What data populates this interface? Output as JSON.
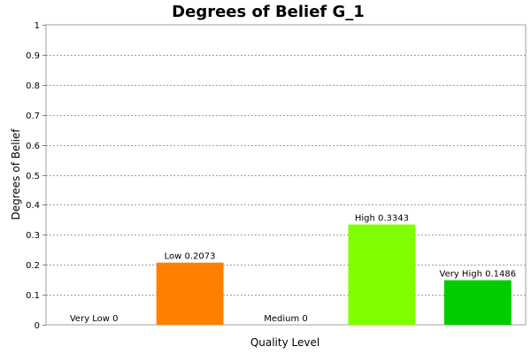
{
  "chart_data": {
    "type": "bar",
    "title": "Degrees of Belief G_1",
    "xlabel": "Quality Level",
    "ylabel": "Degrees of Belief",
    "ylim": [
      0,
      1
    ],
    "yticks": [
      "0",
      "0.1",
      "0.2",
      "0.3",
      "0.4",
      "0.5",
      "0.6",
      "0.7",
      "0.8",
      "0.9",
      "1"
    ],
    "grid": true,
    "categories": [
      "Very Low",
      "Low",
      "Medium",
      "High",
      "Very High"
    ],
    "values": [
      0,
      0.2073,
      0,
      0.3343,
      0.1486
    ],
    "value_labels": [
      "0",
      "0.2073",
      "0",
      "0.3343",
      "0.1486"
    ],
    "colors": [
      "#ff0000",
      "#ff8000",
      "#ffff00",
      "#80ff00",
      "#00cc00"
    ]
  }
}
